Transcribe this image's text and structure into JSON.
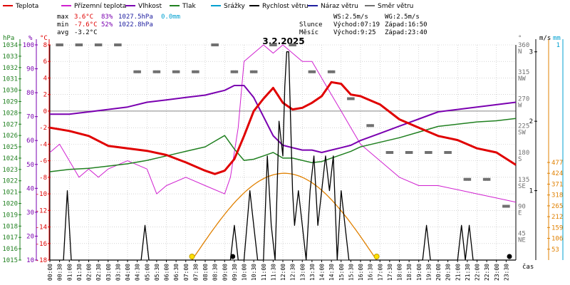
{
  "colors": {
    "temperature": "#e00000",
    "feels_like": "#d020d0",
    "humidity": "#7a00b0",
    "pressure": "#208020",
    "rain": "#00a0d0",
    "wind_speed": "#000000",
    "gust": "#2020a0",
    "wind_dir": "#707070",
    "sun_arc": "#e08000",
    "grid": "#bbbbbb"
  },
  "legend": {
    "items": [
      {
        "label": "Teplota",
        "color": "#e00000"
      },
      {
        "label": "Přízemní teplota",
        "color": "#d020d0"
      },
      {
        "label": "Vlhkost",
        "color": "#7a00b0"
      },
      {
        "label": "Tlak",
        "color": "#208020"
      },
      {
        "label": "Srážky",
        "color": "#00a0d0"
      },
      {
        "label": "Rychlost větru",
        "color": "#000000"
      },
      {
        "label": "Náraz větru",
        "color": "#2020a0"
      },
      {
        "label": "Směr větru",
        "color": "#707070"
      }
    ]
  },
  "stats": {
    "max_label": "max",
    "max_temp": "3.6°C",
    "max_hum": "83%",
    "max_press": "1027.5hPa",
    "rain_total": "0.0mm",
    "min_label": "min",
    "min_temp": "-7.6°C",
    "min_hum": "52%",
    "min_press": "1022.8hPa",
    "avg_label": "avg",
    "avg_temp": "-3.2°C"
  },
  "wind_info": {
    "ws": "WS:2.5m/s",
    "wg": "WG:2.5m/s"
  },
  "sun_info": {
    "label": "Slunce",
    "rise": "Východ:07:19",
    "set": "Západ:16:50"
  },
  "moon_info": {
    "label": "Měsíc",
    "rise": "Východ:9:25",
    "set": "Západ:23:40"
  },
  "axis_time_label": "čas",
  "chart_data": {
    "type": "line",
    "title": "3.2.2025",
    "x_ticks": [
      "00:00",
      "00:30",
      "01:00",
      "01:30",
      "02:00",
      "02:30",
      "03:00",
      "03:30",
      "04:00",
      "04:30",
      "05:00",
      "05:30",
      "06:00",
      "06:30",
      "07:00",
      "07:30",
      "08:00",
      "08:30",
      "09:00",
      "09:30",
      "10:00",
      "10:30",
      "11:00",
      "11:30",
      "12:00",
      "12:30",
      "13:00",
      "13:30",
      "14:00",
      "14:30",
      "15:00",
      "15:30",
      "16:00",
      "16:30",
      "17:00",
      "17:30",
      "18:00",
      "18:30",
      "19:00",
      "19:30",
      "20:00",
      "20:30",
      "21:00",
      "21:30",
      "22:00",
      "22:30",
      "23:00",
      "23:30"
    ],
    "axes": {
      "hpa": {
        "unit": "hPa",
        "min": 1015,
        "max": 1034,
        "ticks": [
          1015,
          1016,
          1017,
          1018,
          1019,
          1020,
          1021,
          1022,
          1023,
          1024,
          1025,
          1026,
          1027,
          1028,
          1029,
          1030,
          1031,
          1032,
          1033,
          1034
        ]
      },
      "humidity": {
        "unit": "%",
        "min": 10,
        "max": 100,
        "ticks": [
          10,
          20,
          30,
          40,
          50,
          60,
          70,
          80,
          90,
          100
        ]
      },
      "temp": {
        "unit": "°C",
        "min": -18,
        "max": 8,
        "ticks": [
          -18,
          -16,
          -14,
          -12,
          -10,
          -8,
          -6,
          -4,
          -2,
          0,
          2,
          4,
          6,
          8
        ]
      },
      "wind_dir": {
        "unit": "°",
        "ticks": [
          {
            "deg": "45",
            "dir": "NE"
          },
          {
            "deg": "90",
            "dir": "E"
          },
          {
            "deg": "135",
            "dir": "SE"
          },
          {
            "deg": "180",
            "dir": "S"
          },
          {
            "deg": "225",
            "dir": "SW"
          },
          {
            "deg": "270",
            "dir": "W"
          },
          {
            "deg": "315",
            "dir": "NW"
          },
          {
            "deg": "360",
            "dir": "N"
          }
        ]
      },
      "wind_speed": {
        "unit": "m/s",
        "ticks": [
          "1",
          "2",
          "3"
        ]
      },
      "rain": {
        "unit": "mm",
        "ticks": [
          "1"
        ]
      },
      "sun": {
        "ticks": [
          "53",
          "106",
          "159",
          "212",
          "265",
          "318",
          "371",
          "424",
          "477"
        ]
      }
    },
    "series": [
      {
        "name": "Teplota",
        "unit": "°C",
        "x": [
          0,
          1,
          2,
          3,
          4,
          5,
          6,
          7,
          8,
          8.5,
          9,
          9.5,
          10,
          10.5,
          11,
          11.5,
          12,
          12.5,
          13,
          13.5,
          14,
          14.5,
          15,
          15.5,
          16,
          17,
          18,
          19,
          20,
          21,
          22,
          23,
          24
        ],
        "y": [
          -2.0,
          -2.4,
          -3.0,
          -4.2,
          -4.5,
          -4.8,
          -5.3,
          -6.2,
          -7.2,
          -7.6,
          -7.2,
          -5.8,
          -3.0,
          0.0,
          1.5,
          2.8,
          1.0,
          0.2,
          0.4,
          1.0,
          1.8,
          3.5,
          3.3,
          2.0,
          1.8,
          0.8,
          -1.0,
          -2.0,
          -3.0,
          -3.5,
          -4.5,
          -5.0,
          -6.5
        ]
      },
      {
        "name": "Přízemní teplota",
        "unit": "°C",
        "x": [
          0,
          0.5,
          1,
          1.5,
          2,
          2.5,
          3,
          4,
          5,
          5.5,
          6,
          7,
          8,
          9,
          9.3,
          9.7,
          10,
          10.5,
          11,
          11.5,
          12,
          12.5,
          13,
          13.5,
          14,
          14.5,
          15,
          15.5,
          16,
          17,
          18,
          19,
          20,
          21,
          22,
          23,
          24
        ],
        "y": [
          -5,
          -4,
          -6,
          -8,
          -7,
          -8,
          -7,
          -6,
          -7,
          -10,
          -9,
          -8,
          -9,
          -10,
          -8,
          -2,
          6,
          7,
          8,
          7,
          8,
          7,
          6,
          6,
          4,
          2,
          0,
          -2,
          -4,
          -6,
          -8,
          -9,
          -9,
          -9.5,
          -10,
          -10.5,
          -11
        ]
      },
      {
        "name": "Vlhkost",
        "unit": "%",
        "x": [
          0,
          1,
          2,
          3,
          4,
          5,
          6,
          7,
          8,
          8.5,
          9,
          9.5,
          10,
          10.5,
          11,
          11.5,
          12,
          12.5,
          13,
          13.5,
          14,
          14.5,
          15,
          15.5,
          16,
          17,
          18,
          19,
          20,
          21,
          22,
          23,
          24
        ],
        "y": [
          71,
          71,
          72,
          73,
          74,
          76,
          77,
          78,
          79,
          80,
          81,
          83,
          83,
          78,
          70,
          62,
          58,
          57,
          56,
          56,
          55,
          56,
          57,
          58,
          60,
          63,
          66,
          69,
          72,
          73,
          74,
          75,
          76
        ]
      },
      {
        "name": "Tlak",
        "unit": "hPa",
        "x": [
          0,
          1,
          2,
          3,
          4,
          5,
          6,
          7,
          8,
          8.5,
          9,
          9.5,
          10,
          10.5,
          11,
          11.5,
          12,
          12.5,
          13,
          13.5,
          14,
          14.5,
          15,
          15.5,
          16,
          17,
          18,
          19,
          20,
          21,
          22,
          23,
          24
        ],
        "y": [
          1022.8,
          1023.0,
          1023.1,
          1023.3,
          1023.5,
          1023.8,
          1024.2,
          1024.6,
          1025.0,
          1025.5,
          1026.0,
          1024.8,
          1023.8,
          1023.9,
          1024.2,
          1024.5,
          1024.0,
          1024.0,
          1023.8,
          1023.6,
          1023.7,
          1024.0,
          1024.3,
          1024.6,
          1025.0,
          1025.4,
          1025.8,
          1026.3,
          1026.8,
          1027.0,
          1027.2,
          1027.3,
          1027.5
        ]
      },
      {
        "name": "Rychlost větru",
        "unit": "m/s",
        "x": [
          0,
          0.7,
          0.9,
          1.1,
          3,
          4.7,
          4.9,
          5.1,
          7,
          9.3,
          9.5,
          9.7,
          10,
          10.3,
          10.5,
          10.7,
          11,
          11.2,
          11.4,
          11.6,
          11.8,
          12,
          12.1,
          12.2,
          12.3,
          12.4,
          12.5,
          12.6,
          12.8,
          13,
          13.2,
          13.4,
          13.6,
          13.8,
          14,
          14.2,
          14.4,
          14.6,
          14.8,
          15,
          15.2,
          15.4,
          15.6,
          15.8,
          16,
          18,
          19.2,
          19.4,
          19.6,
          21,
          21.2,
          21.4,
          21.6,
          21.8,
          22,
          24
        ],
        "y": [
          0,
          0,
          1,
          0,
          0,
          0,
          0.5,
          0,
          0,
          0,
          0.5,
          0,
          0,
          1,
          0.5,
          0,
          0,
          1.5,
          0.5,
          0,
          2,
          1.5,
          2.5,
          3,
          3,
          2,
          1,
          0.5,
          1,
          0.5,
          0,
          1,
          1.5,
          0.5,
          1,
          1.5,
          1,
          1.5,
          0,
          1,
          0.5,
          0,
          0,
          0,
          0,
          0,
          0,
          0.5,
          0,
          0,
          0.5,
          0,
          0.5,
          0,
          0,
          0
        ]
      },
      {
        "name": "Směr větru",
        "unit": "°",
        "x": [
          0.5,
          1.5,
          2.5,
          3.5,
          4.5,
          5.5,
          6.5,
          7.5,
          8.5,
          9.5,
          10.5,
          11.5,
          12.5,
          13.5,
          14.5,
          15.5,
          16.5,
          17.5,
          18.5,
          19.5,
          20.5,
          21.5,
          22.5,
          23.5
        ],
        "y": [
          360,
          360,
          360,
          360,
          315,
          315,
          315,
          315,
          360,
          315,
          315,
          360,
          360,
          315,
          315,
          270,
          225,
          180,
          180,
          180,
          180,
          135,
          135,
          90
        ]
      }
    ],
    "sun_curve": {
      "rise": 7.32,
      "set": 16.83,
      "peak": 424
    },
    "ylim_temp": [
      -18,
      8
    ]
  }
}
